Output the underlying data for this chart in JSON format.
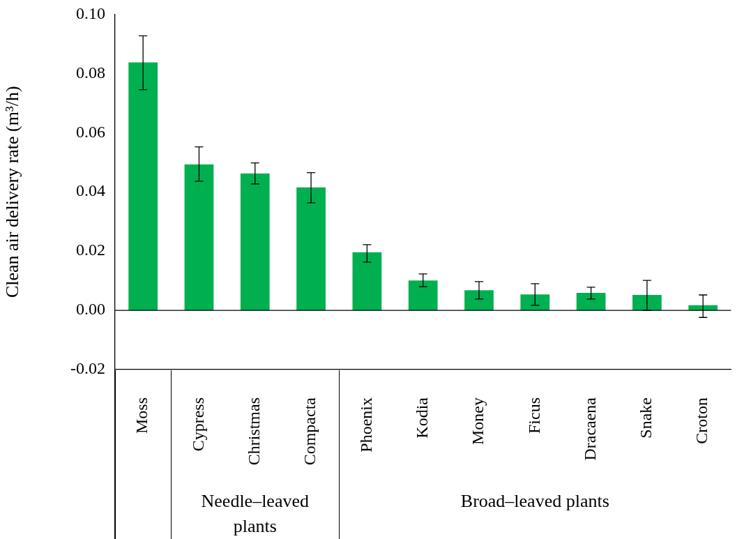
{
  "chart_data": {
    "type": "bar",
    "ylabel": "Clean air delivery rate (m³/h)",
    "categories": [
      "Moss",
      "Cypress",
      "Christmas",
      "Compacta",
      "Phoenix",
      "Kodia",
      "Money",
      "Ficus",
      "Dracaena",
      "Snake",
      "Croton"
    ],
    "values": [
      0.0837,
      0.0493,
      0.0462,
      0.0415,
      0.0196,
      0.0101,
      0.0068,
      0.0054,
      0.0059,
      0.0052,
      0.0017
    ],
    "errors": [
      [
        0.0745,
        0.0927
      ],
      [
        0.0436,
        0.0552
      ],
      [
        0.0427,
        0.0498
      ],
      [
        0.0363,
        0.0465
      ],
      [
        0.0163,
        0.0222
      ],
      [
        0.008,
        0.0123
      ],
      [
        0.0038,
        0.0097
      ],
      [
        0.0017,
        0.009
      ],
      [
        0.0038,
        0.0078
      ],
      [
        0.0,
        0.0101
      ],
      [
        -0.0024,
        0.0052
      ]
    ],
    "color": "#00b050",
    "ylim": [
      -0.02,
      0.1
    ],
    "yticks": [
      {
        "value": -0.02,
        "label": "-0.02"
      },
      {
        "value": 0,
        "label": "0.00"
      },
      {
        "value": 0.02,
        "label": "0.02"
      },
      {
        "value": 0.04,
        "label": "0.04"
      },
      {
        "value": 0.06,
        "label": "0.06"
      },
      {
        "value": 0.08,
        "label": "0.08"
      },
      {
        "value": 0.1,
        "label": "0.10"
      }
    ],
    "annotations": [
      "Needle–leaved plants",
      "Broad–leaved plants"
    ],
    "ref_lines": [
      {
        "axis": "y",
        "value": 0,
        "color": "#000000"
      }
    ],
    "grid": false,
    "legend": false
  }
}
